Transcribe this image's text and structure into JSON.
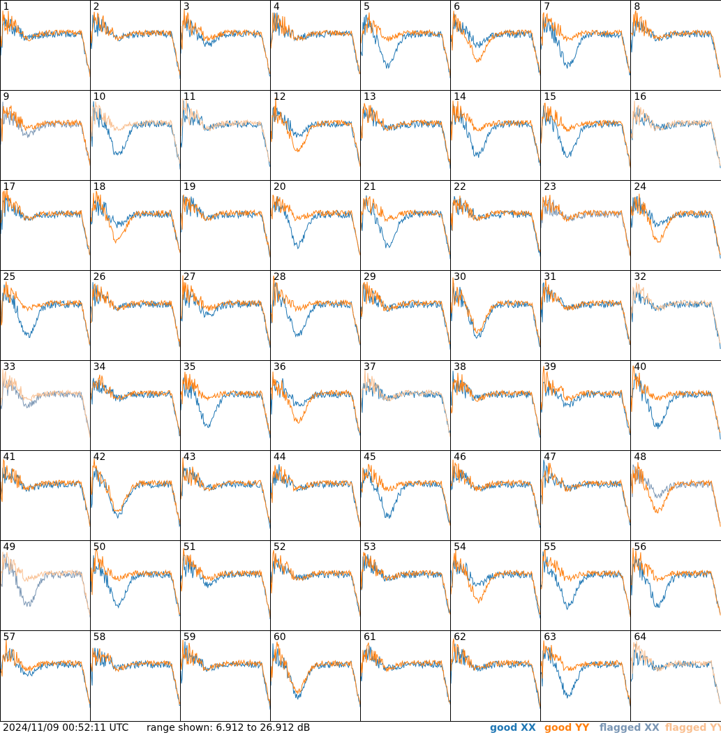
{
  "chart_data": {
    "type": "line",
    "panel_labels": [
      "1",
      "2",
      "3",
      "4",
      "5",
      "6",
      "7",
      "8",
      "9",
      "10",
      "11",
      "12",
      "13",
      "14",
      "15",
      "16",
      "17",
      "18",
      "19",
      "20",
      "21",
      "22",
      "23",
      "24",
      "25",
      "26",
      "27",
      "28",
      "29",
      "30",
      "31",
      "32",
      "33",
      "34",
      "35",
      "36",
      "37",
      "38",
      "39",
      "40",
      "41",
      "42",
      "43",
      "44",
      "45",
      "46",
      "47",
      "48",
      "49",
      "50",
      "51",
      "52",
      "53",
      "54",
      "55",
      "56",
      "57",
      "58",
      "59",
      "60",
      "61",
      "62",
      "63",
      "64"
    ],
    "ylim": [
      6.912,
      26.912
    ],
    "y_units": "dB",
    "series": [
      {
        "name": "good XX",
        "color": "#1f77b4"
      },
      {
        "name": "good YY",
        "color": "#ff7f0e"
      },
      {
        "name": "flagged XX",
        "color": "#7a96b4"
      },
      {
        "name": "flagged YY",
        "color": "#f9bf90"
      }
    ],
    "flagged_xx_panels": [
      "9",
      "23",
      "33",
      "48",
      "49"
    ],
    "flagged_yy_panels": [
      "10",
      "11",
      "16",
      "32",
      "33",
      "37",
      "49",
      "64"
    ],
    "grid": false
  },
  "footer": {
    "timestamp": "2024/11/09 00:52:11 UTC",
    "range_text": "range shown: 6.912 to 26.912 dB",
    "legend": {
      "good_xx": "good XX",
      "good_yy": "good YY",
      "flagged_xx": "flagged XX",
      "flagged_yy": "flagged YY"
    }
  }
}
